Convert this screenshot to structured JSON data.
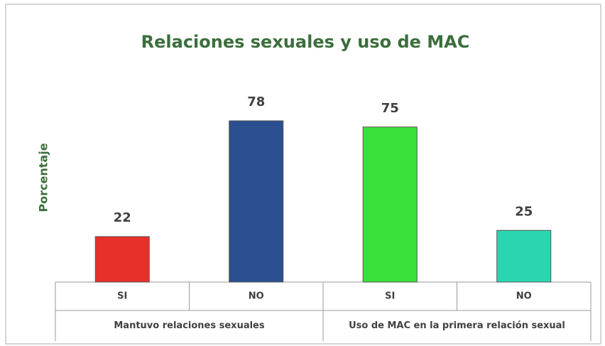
{
  "chart_data": {
    "type": "bar",
    "title": "Relaciones sexuales y uso de MAC",
    "y_label": "Porcentaje",
    "ylim": [
      0,
      100
    ],
    "groups": [
      {
        "name": "Mantuvo relaciones sexuales",
        "categories": [
          "SI",
          "NO"
        ],
        "values": [
          22,
          78
        ],
        "colors": [
          "#e8302a",
          "#2a4e8f"
        ]
      },
      {
        "name": "Uso de MAC en la primera  relación sexual",
        "categories": [
          "SI",
          "NO"
        ],
        "values": [
          75,
          25
        ],
        "colors": [
          "#3ae03a",
          "#2ad6b0"
        ]
      }
    ]
  }
}
